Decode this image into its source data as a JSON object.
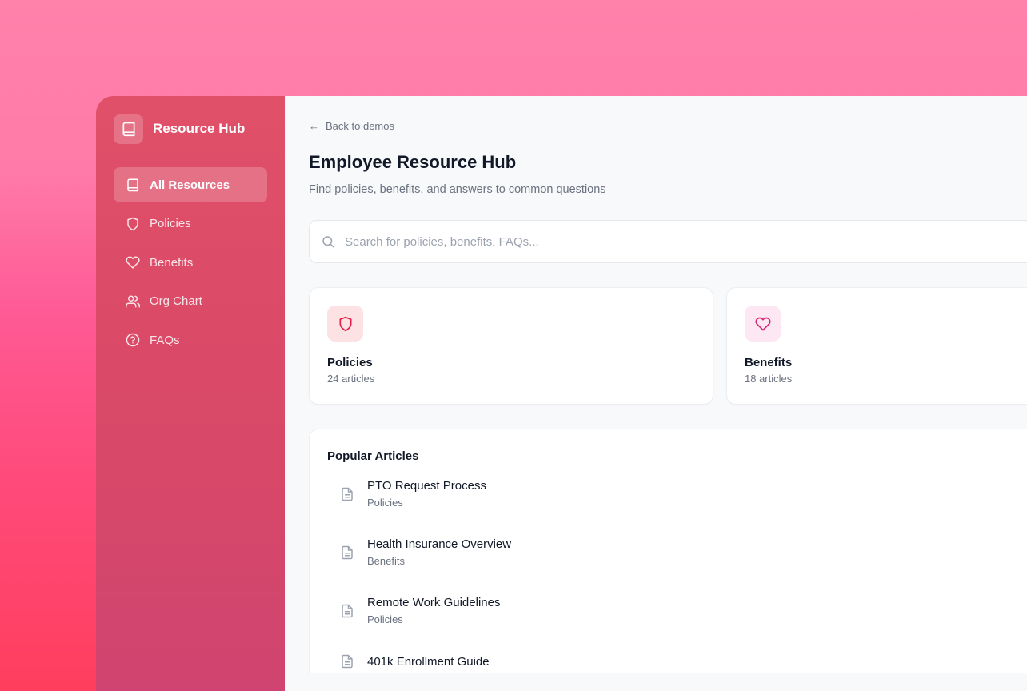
{
  "sidebar": {
    "brand": "Resource Hub",
    "items": [
      {
        "label": "All Resources",
        "icon": "book-icon",
        "active": true
      },
      {
        "label": "Policies",
        "icon": "shield-icon"
      },
      {
        "label": "Benefits",
        "icon": "heart-icon"
      },
      {
        "label": "Org Chart",
        "icon": "users-icon"
      },
      {
        "label": "FAQs",
        "icon": "help-circle-icon"
      }
    ]
  },
  "main": {
    "back": "Back to demos",
    "title": "Employee Resource Hub",
    "subtitle": "Find policies, benefits, and answers to common questions",
    "search_placeholder": "Search for policies, benefits, FAQs...",
    "cards": [
      {
        "title": "Policies",
        "count": "24 articles",
        "color": "#e11d48",
        "bg": "#fde2e4"
      },
      {
        "title": "Benefits",
        "count": "18 articles",
        "color": "#db2777",
        "bg": "#fce7f3"
      }
    ],
    "popular": {
      "title": "Popular Articles",
      "articles": [
        {
          "title": "PTO Request Process",
          "category": "Policies"
        },
        {
          "title": "Health Insurance Overview",
          "category": "Benefits"
        },
        {
          "title": "Remote Work Guidelines",
          "category": "Policies"
        },
        {
          "title": "401k Enrollment Guide",
          "category": ""
        }
      ]
    }
  }
}
